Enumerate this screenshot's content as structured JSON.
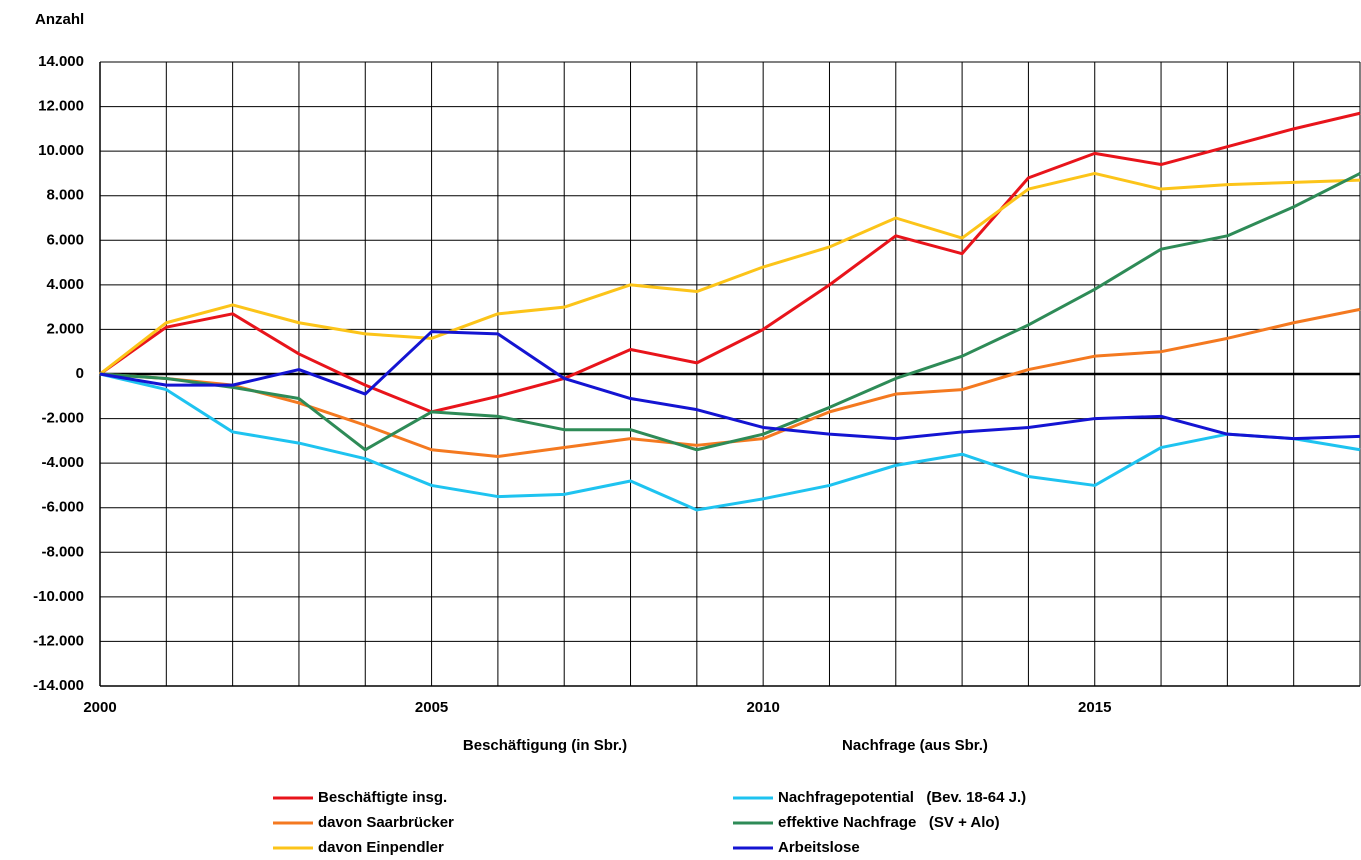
{
  "chart_data": {
    "type": "line",
    "y_label": "Anzahl",
    "group_labels": [
      "Beschäftigung (in Sbr.)",
      "Nachfrage (aus Sbr.)"
    ],
    "x": [
      2000,
      2001,
      2002,
      2003,
      2004,
      2005,
      2006,
      2007,
      2008,
      2009,
      2010,
      2011,
      2012,
      2013,
      2014,
      2015,
      2016,
      2017,
      2018,
      2019
    ],
    "xlim": [
      2000,
      2019
    ],
    "xticks": [
      2000,
      2005,
      2010,
      2015
    ],
    "ylim": [
      -14000,
      14000
    ],
    "yticks": [
      {
        "value": -14000,
        "label": "-14.000"
      },
      {
        "value": -12000,
        "label": "-12.000"
      },
      {
        "value": -10000,
        "label": "-10.000"
      },
      {
        "value": -8000,
        "label": "-8.000"
      },
      {
        "value": -6000,
        "label": "-6.000"
      },
      {
        "value": -4000,
        "label": "-4.000"
      },
      {
        "value": -2000,
        "label": "-2.000"
      },
      0,
      {
        "value": 2000,
        "label": "2.000"
      },
      {
        "value": 4000,
        "label": "4.000"
      },
      {
        "value": 6000,
        "label": "6.000"
      },
      {
        "value": 8000,
        "label": "8.000"
      },
      {
        "value": 10000,
        "label": "10.000"
      },
      {
        "value": 12000,
        "label": "12.000"
      },
      {
        "value": 14000,
        "label": "14.000"
      }
    ],
    "grid": true,
    "series": [
      {
        "name": "Beschäftigte insg.",
        "color": "#e8141b",
        "values": [
          0,
          2100,
          2700,
          900,
          -500,
          -1700,
          -1000,
          -200,
          1100,
          500,
          2000,
          4000,
          6200,
          5400,
          8800,
          9900,
          9400,
          10200,
          11000,
          11700
        ]
      },
      {
        "name": "davon Saarbrücker",
        "color": "#f47920",
        "values": [
          0,
          -200,
          -500,
          -1300,
          -2300,
          -3400,
          -3700,
          -3300,
          -2900,
          -3200,
          -2900,
          -1700,
          -900,
          -700,
          200,
          800,
          1000,
          1600,
          2300,
          2900
        ]
      },
      {
        "name": "davon Einpendler",
        "color": "#fcc419",
        "values": [
          0,
          2300,
          3100,
          2300,
          1800,
          1600,
          2700,
          3000,
          4000,
          3700,
          4800,
          5700,
          7000,
          6100,
          8300,
          9000,
          8300,
          8500,
          8600,
          8700
        ]
      },
      {
        "name": "Nachfragepotential   (Bev. 18-64 J.)",
        "color": "#1ec3f0",
        "values": [
          0,
          -700,
          -2600,
          -3100,
          -3800,
          -5000,
          -5500,
          -5400,
          -4800,
          -6100,
          -5600,
          -5000,
          -4100,
          -3600,
          -4600,
          -5000,
          -3300,
          -2700,
          -2900,
          -3400
        ]
      },
      {
        "name": "effektive Nachfrage   (SV + Alo)",
        "color": "#2e8b57",
        "values": [
          0,
          -200,
          -600,
          -1100,
          -3400,
          -1700,
          -1900,
          -2500,
          -2500,
          -3400,
          -2700,
          -1500,
          -200,
          800,
          2200,
          3800,
          5600,
          6200,
          7500,
          9000
        ]
      },
      {
        "name": "Arbeitslose",
        "color": "#1414d2",
        "values": [
          0,
          -500,
          -500,
          200,
          -900,
          1900,
          1800,
          -200,
          -1100,
          -1600,
          -2400,
          -2700,
          -2900,
          -2600,
          -2400,
          -2000,
          -1900,
          -2700,
          -2900,
          -2800
        ]
      }
    ]
  }
}
